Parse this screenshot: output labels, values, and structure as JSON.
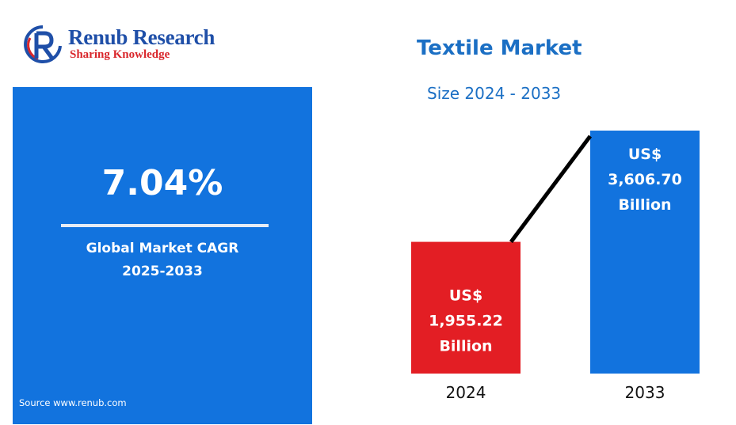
{
  "brand": {
    "name": "Renub Research",
    "tagline": "Sharing Knowledge",
    "colors": {
      "primary": "#1f4fa8",
      "accent": "#d9262b"
    }
  },
  "cagr_panel": {
    "value": "7.04%",
    "label_line1": "Global Market CAGR",
    "label_line2": "2025-2033",
    "source": "Source  www.renub.com",
    "color": "#1273de"
  },
  "chart_data": {
    "type": "bar",
    "title": "Textile Market",
    "subtitle": "Size 2024 - 2033",
    "categories": [
      "2024",
      "2033"
    ],
    "values": [
      1955.22,
      3606.7
    ],
    "unit": "US$ Billion",
    "labels": [
      [
        "US$",
        "1,955.22",
        "Billion"
      ],
      [
        "US$",
        "3,606.70",
        "Billion"
      ]
    ],
    "colors": [
      "#e31e24",
      "#1273de"
    ],
    "trend_line": true,
    "grid": false,
    "legend": "none"
  }
}
